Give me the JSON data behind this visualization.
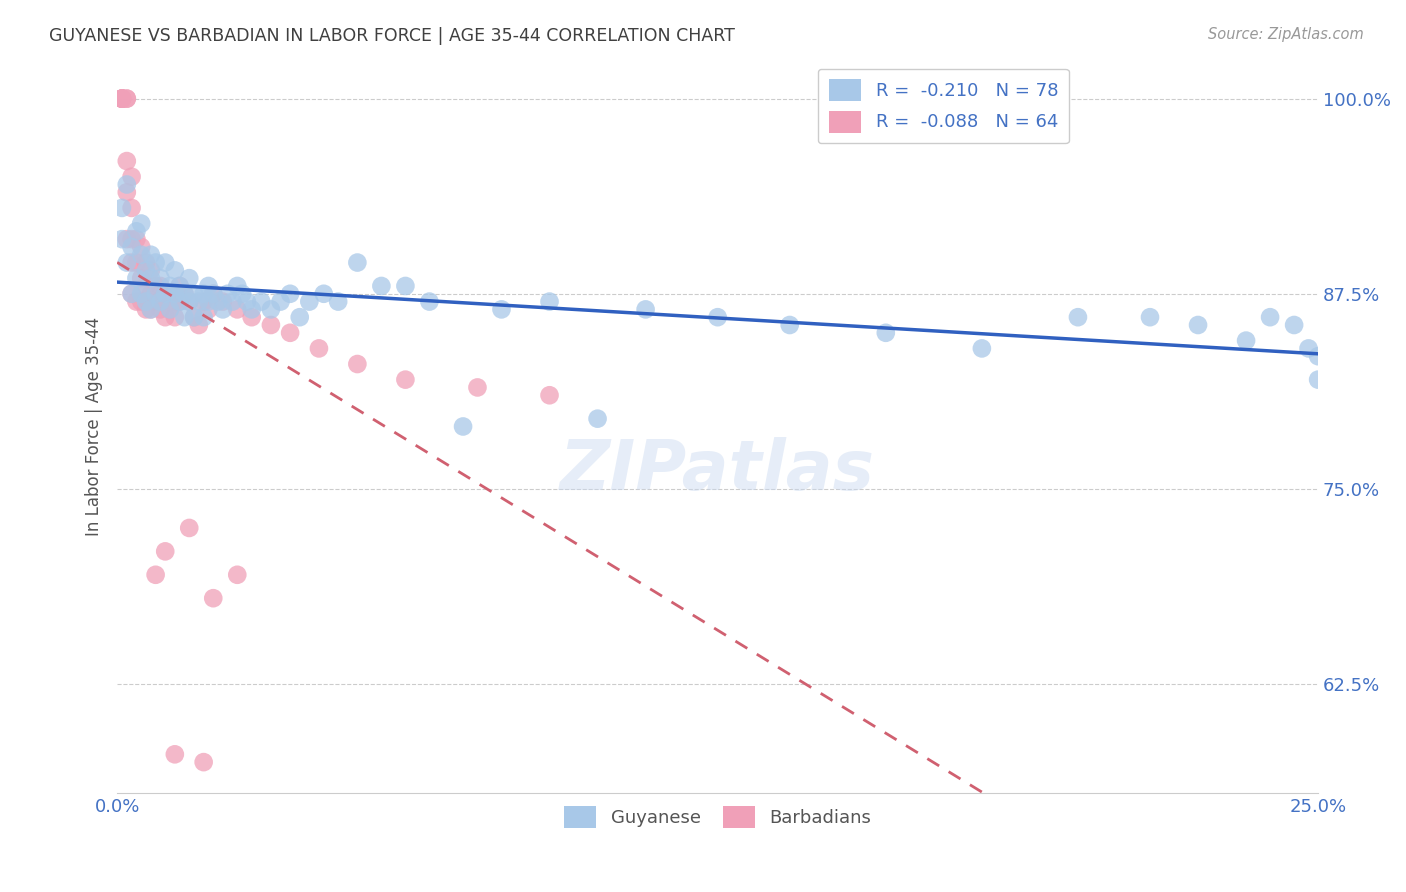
{
  "title": "GUYANESE VS BARBADIAN IN LABOR FORCE | AGE 35-44 CORRELATION CHART",
  "source": "Source: ZipAtlas.com",
  "ylabel": "In Labor Force | Age 35-44",
  "xlim": [
    0.0,
    0.25
  ],
  "ylim": [
    0.555,
    1.025
  ],
  "yticks": [
    0.625,
    0.75,
    0.875,
    1.0
  ],
  "ytick_labels": [
    "62.5%",
    "75.0%",
    "87.5%",
    "100.0%"
  ],
  "xticks": [
    0.0,
    0.05,
    0.1,
    0.15,
    0.2,
    0.25
  ],
  "xtick_labels": [
    "0.0%",
    "",
    "",
    "",
    "",
    "25.0%"
  ],
  "R_blue": -0.21,
  "N_blue": 78,
  "R_pink": -0.088,
  "N_pink": 64,
  "blue_color": "#A8C8E8",
  "pink_color": "#F0A0B8",
  "blue_line_color": "#3060C0",
  "pink_line_color": "#D06070",
  "axis_color": "#4472C4",
  "blue_scatter_x": [
    0.001,
    0.001,
    0.002,
    0.002,
    0.003,
    0.003,
    0.004,
    0.004,
    0.005,
    0.005,
    0.005,
    0.006,
    0.006,
    0.007,
    0.007,
    0.007,
    0.008,
    0.008,
    0.009,
    0.009,
    0.01,
    0.01,
    0.011,
    0.011,
    0.012,
    0.012,
    0.013,
    0.013,
    0.014,
    0.014,
    0.015,
    0.015,
    0.016,
    0.016,
    0.017,
    0.018,
    0.018,
    0.019,
    0.019,
    0.02,
    0.021,
    0.022,
    0.023,
    0.024,
    0.025,
    0.026,
    0.027,
    0.028,
    0.03,
    0.032,
    0.034,
    0.036,
    0.038,
    0.04,
    0.043,
    0.046,
    0.05,
    0.055,
    0.06,
    0.065,
    0.072,
    0.08,
    0.09,
    0.1,
    0.11,
    0.125,
    0.14,
    0.16,
    0.18,
    0.2,
    0.215,
    0.225,
    0.235,
    0.24,
    0.245,
    0.248,
    0.25,
    0.25
  ],
  "blue_scatter_y": [
    0.91,
    0.93,
    0.895,
    0.945,
    0.905,
    0.875,
    0.915,
    0.885,
    0.9,
    0.92,
    0.875,
    0.89,
    0.87,
    0.9,
    0.885,
    0.865,
    0.895,
    0.875,
    0.885,
    0.87,
    0.895,
    0.875,
    0.88,
    0.865,
    0.875,
    0.89,
    0.88,
    0.87,
    0.875,
    0.86,
    0.87,
    0.885,
    0.875,
    0.86,
    0.87,
    0.875,
    0.86,
    0.88,
    0.87,
    0.875,
    0.87,
    0.865,
    0.875,
    0.87,
    0.88,
    0.875,
    0.87,
    0.865,
    0.87,
    0.865,
    0.87,
    0.875,
    0.86,
    0.87,
    0.875,
    0.87,
    0.895,
    0.88,
    0.88,
    0.87,
    0.79,
    0.865,
    0.87,
    0.795,
    0.865,
    0.86,
    0.855,
    0.85,
    0.84,
    0.86,
    0.86,
    0.855,
    0.845,
    0.86,
    0.855,
    0.84,
    0.835,
    0.82
  ],
  "pink_scatter_x": [
    0.001,
    0.001,
    0.001,
    0.001,
    0.001,
    0.001,
    0.002,
    0.002,
    0.002,
    0.002,
    0.002,
    0.003,
    0.003,
    0.003,
    0.003,
    0.003,
    0.004,
    0.004,
    0.004,
    0.005,
    0.005,
    0.005,
    0.006,
    0.006,
    0.006,
    0.007,
    0.007,
    0.007,
    0.008,
    0.008,
    0.009,
    0.009,
    0.01,
    0.01,
    0.011,
    0.011,
    0.012,
    0.012,
    0.013,
    0.013,
    0.014,
    0.015,
    0.016,
    0.017,
    0.018,
    0.019,
    0.02,
    0.022,
    0.025,
    0.028,
    0.032,
    0.036,
    0.042,
    0.05,
    0.06,
    0.075,
    0.09,
    0.015,
    0.02,
    0.025,
    0.012,
    0.018,
    0.01,
    0.008
  ],
  "pink_scatter_y": [
    1.0,
    1.0,
    1.0,
    1.0,
    1.0,
    1.0,
    1.0,
    1.0,
    0.96,
    0.94,
    0.91,
    0.95,
    0.93,
    0.91,
    0.895,
    0.875,
    0.91,
    0.895,
    0.87,
    0.905,
    0.885,
    0.87,
    0.895,
    0.88,
    0.865,
    0.89,
    0.875,
    0.865,
    0.88,
    0.87,
    0.88,
    0.865,
    0.875,
    0.86,
    0.875,
    0.865,
    0.87,
    0.86,
    0.87,
    0.88,
    0.875,
    0.87,
    0.86,
    0.855,
    0.87,
    0.865,
    0.875,
    0.87,
    0.865,
    0.86,
    0.855,
    0.85,
    0.84,
    0.83,
    0.82,
    0.815,
    0.81,
    0.725,
    0.68,
    0.695,
    0.58,
    0.575,
    0.71,
    0.695
  ]
}
